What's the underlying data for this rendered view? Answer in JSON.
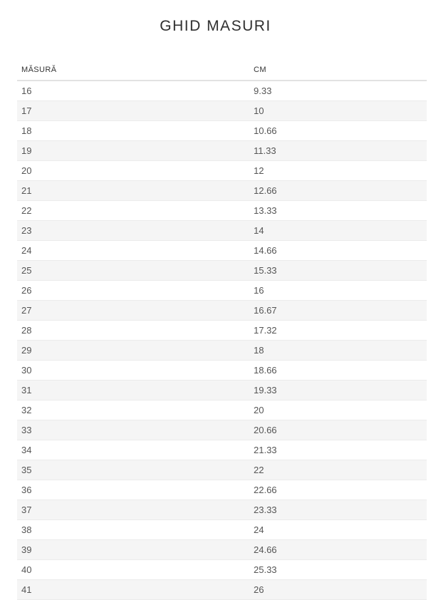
{
  "page": {
    "title": "GHID MASURI"
  },
  "table": {
    "columns": [
      "MĂSURĂ",
      "CM"
    ],
    "rows": [
      [
        "16",
        "9.33"
      ],
      [
        "17",
        "10"
      ],
      [
        "18",
        "10.66"
      ],
      [
        "19",
        "11.33"
      ],
      [
        "20",
        "12"
      ],
      [
        "21",
        "12.66"
      ],
      [
        "22",
        "13.33"
      ],
      [
        "23",
        "14"
      ],
      [
        "24",
        "14.66"
      ],
      [
        "25",
        "15.33"
      ],
      [
        "26",
        "16"
      ],
      [
        "27",
        "16.67"
      ],
      [
        "28",
        "17.32"
      ],
      [
        "29",
        "18"
      ],
      [
        "30",
        "18.66"
      ],
      [
        "31",
        "19.33"
      ],
      [
        "32",
        "20"
      ],
      [
        "33",
        "20.66"
      ],
      [
        "34",
        "21.33"
      ],
      [
        "35",
        "22"
      ],
      [
        "36",
        "22.66"
      ],
      [
        "37",
        "23.33"
      ],
      [
        "38",
        "24"
      ],
      [
        "39",
        "24.66"
      ],
      [
        "40",
        "25.33"
      ],
      [
        "41",
        "26"
      ]
    ]
  },
  "colors": {
    "stripe": "#f5f5f5",
    "row_border": "#ebebeb",
    "header_border": "#e2e2e2",
    "body_text": "#555555",
    "heading_text": "#2f2f2f"
  }
}
